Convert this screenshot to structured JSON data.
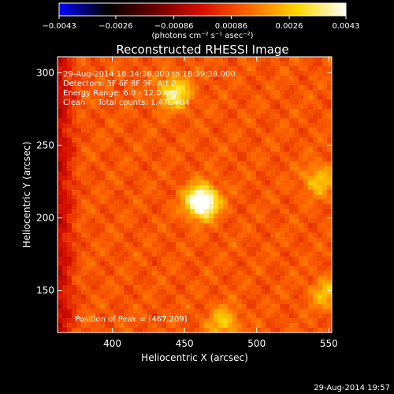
{
  "chart_data": {
    "type": "heatmap",
    "title": "Reconstructed RHESSI Image",
    "xlabel": "Heliocentric X (arcsec)",
    "ylabel": "Heliocentric Y (arcsec)",
    "xlim": [
      362,
      552
    ],
    "ylim": [
      121,
      311
    ],
    "x_ticks": [
      400,
      450,
      500,
      550
    ],
    "y_ticks": [
      150,
      200,
      250,
      300
    ],
    "colorbar": {
      "label": "(photons cm⁻² s⁻¹ asec⁻²)",
      "min": -0.0043,
      "max": 0.0043,
      "ticks": [
        -0.0043,
        -0.0026,
        -0.00086,
        0.00086,
        0.0026,
        0.0043
      ],
      "tick_labels": [
        "−0.0043",
        "−0.0026",
        "−0.00086",
        "0.00086",
        "0.0026",
        "0.0043"
      ],
      "colormap": [
        "#0000ff",
        "#000000",
        "#6a0000",
        "#d81000",
        "#ff6a00",
        "#ffd800",
        "#ffffff"
      ]
    },
    "annotations": [
      "29-Aug-2014 18:34:36.000 to 18:39:38.000",
      "Detectors: 3F 6F 8F 9F, Att 0",
      "Energy Range: 6.0 - 12.0 keV",
      "Clean     Total counts: 1.47E+04"
    ],
    "peak_label": "Position of Peak = [467,209]",
    "peak": [
      467,
      209
    ],
    "sources": [
      {
        "x": 462,
        "y": 211,
        "amplitude": 1.0
      },
      {
        "x": 443,
        "y": 286,
        "amplitude": 0.55
      },
      {
        "x": 543,
        "y": 226,
        "amplitude": 0.35
      },
      {
        "x": 548,
        "y": 148,
        "amplitude": 0.32
      },
      {
        "x": 477,
        "y": 128,
        "amplitude": 0.35
      }
    ]
  },
  "footer": {
    "timestamp": "29-Aug-2014 19:57"
  }
}
